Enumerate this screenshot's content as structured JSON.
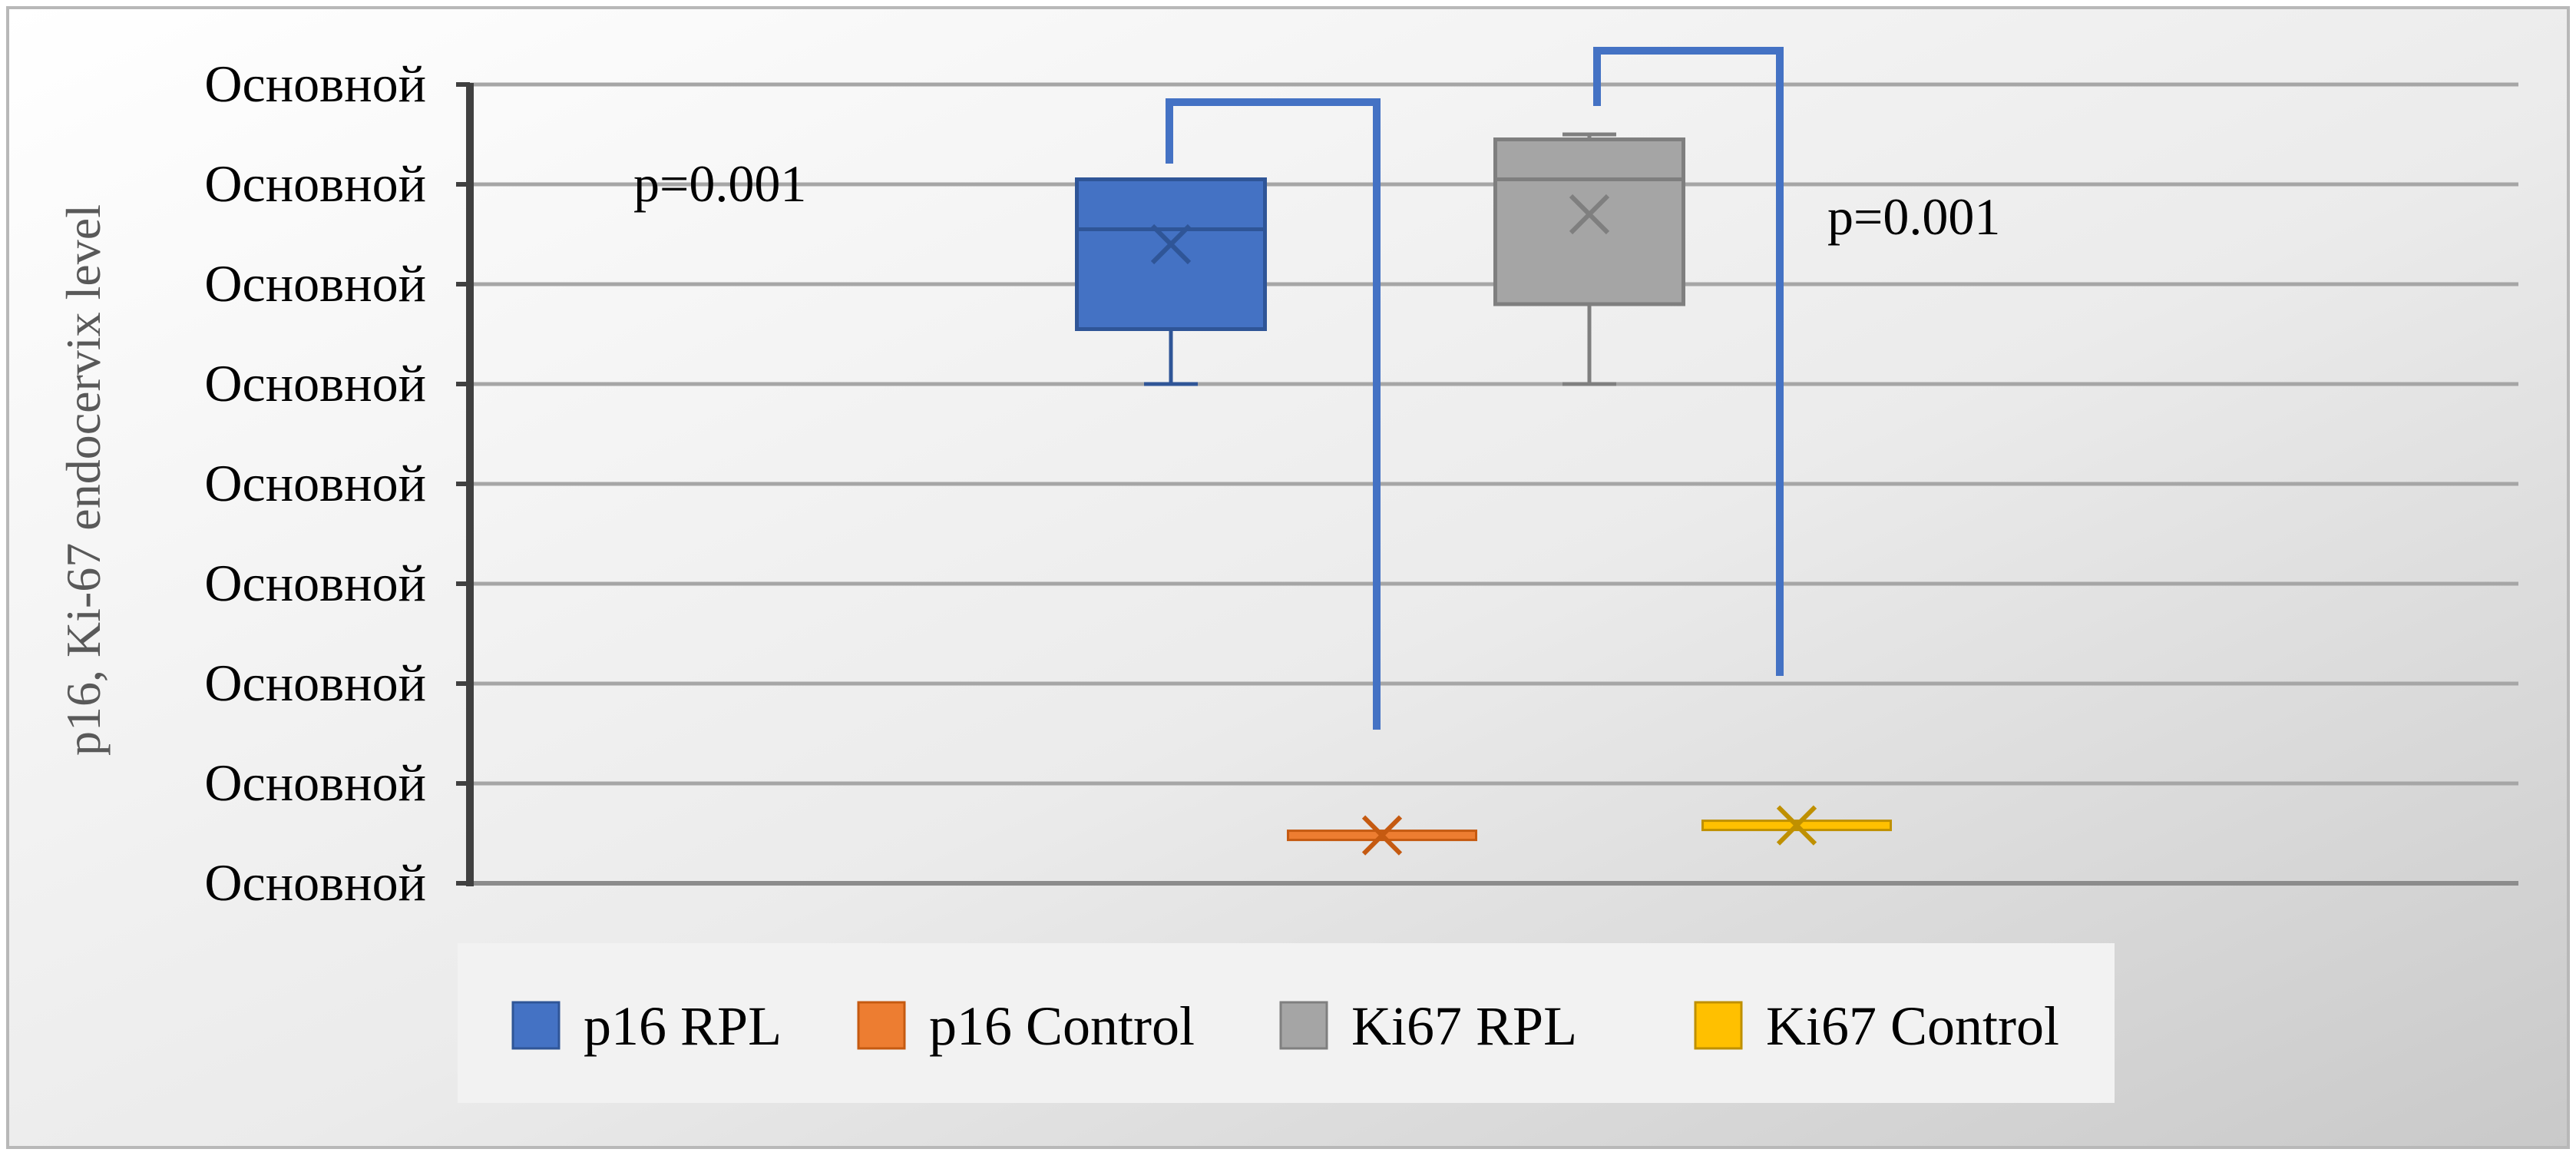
{
  "chart_data": {
    "type": "box",
    "ylabel": "p16, Ki-67 endocervix level",
    "y_tick_labels": [
      "Основной",
      "Основной",
      "Основной",
      "Основной",
      "Основной",
      "Основной",
      "Основной",
      "Основной",
      "Основной"
    ],
    "ylim": [
      0,
      8
    ],
    "grid": true,
    "legend_position": "bottom",
    "series": [
      {
        "name": "p16 RPL",
        "color": "#4472C4",
        "min": 5.0,
        "q1": 5.55,
        "median": 6.55,
        "q3": 7.05,
        "max": 7.05,
        "mean": 6.4
      },
      {
        "name": "p16 Control",
        "color": "#ED7D31",
        "min": 0.48,
        "q1": 0.48,
        "median": 0.48,
        "q3": 0.48,
        "max": 0.48,
        "mean": 0.48
      },
      {
        "name": "Ki67 RPL",
        "color": "#A5A5A5",
        "min": 5.0,
        "q1": 5.8,
        "median": 7.05,
        "q3": 7.45,
        "max": 7.5,
        "mean": 6.7
      },
      {
        "name": "Ki67 Control",
        "color": "#FFC000",
        "min": 0.58,
        "q1": 0.58,
        "median": 0.58,
        "q3": 0.58,
        "max": 0.58,
        "mean": 0.58
      }
    ],
    "annotations": [
      {
        "text": "p=0.001",
        "bracket": [
          "p16 RPL",
          "p16 Control"
        ]
      },
      {
        "text": "p=0.001",
        "bracket": [
          "Ki67 RPL",
          "Ki67 Control"
        ]
      }
    ]
  }
}
